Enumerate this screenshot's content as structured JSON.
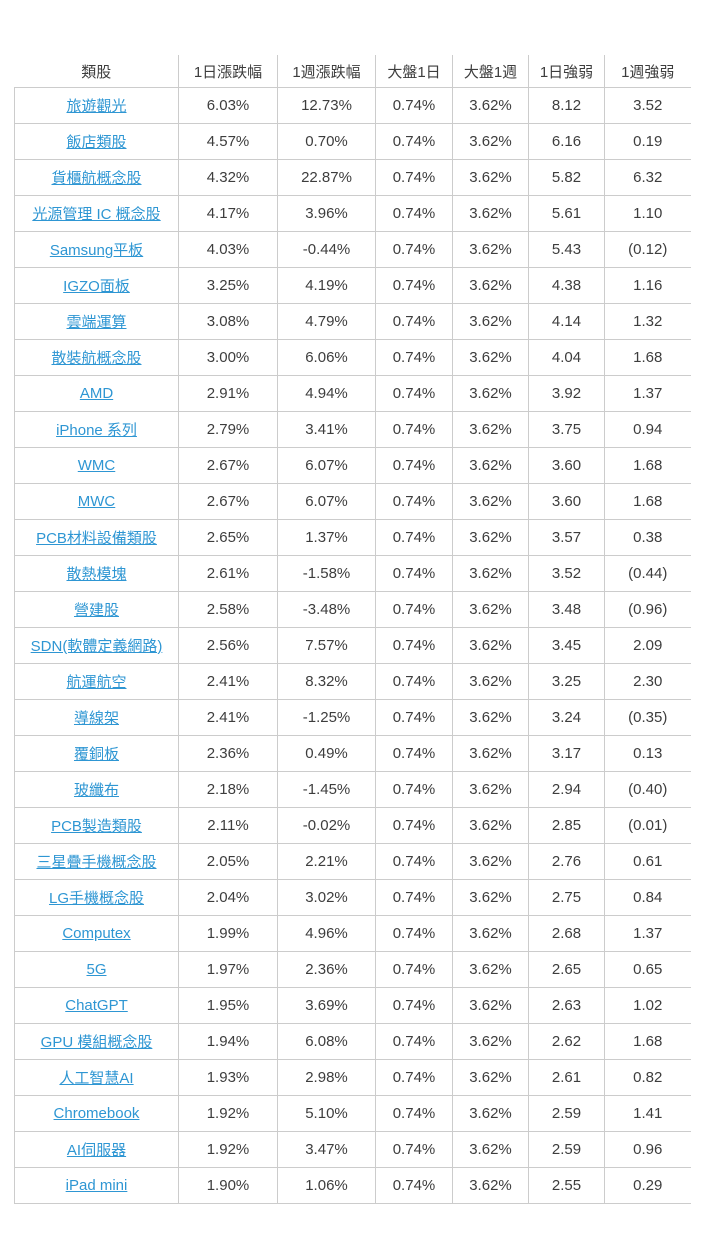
{
  "colors": {
    "link": "#2e96d3",
    "text": "#3d3d3d",
    "border": "#cccccc",
    "background": "#ffffff"
  },
  "table": {
    "headers": [
      "類股",
      "1日漲跌幅",
      "1週漲跌幅",
      "大盤1日",
      "大盤1週",
      "1日強弱",
      "1週強弱"
    ],
    "rows": [
      {
        "category": "旅遊觀光",
        "day_change": "6.03%",
        "week_change": "12.73%",
        "market_day": "0.74%",
        "market_week": "3.62%",
        "day_strength": "8.12",
        "week_strength": "3.52"
      },
      {
        "category": "飯店類股",
        "day_change": "4.57%",
        "week_change": "0.70%",
        "market_day": "0.74%",
        "market_week": "3.62%",
        "day_strength": "6.16",
        "week_strength": "0.19"
      },
      {
        "category": "貨櫃航概念股",
        "day_change": "4.32%",
        "week_change": "22.87%",
        "market_day": "0.74%",
        "market_week": "3.62%",
        "day_strength": "5.82",
        "week_strength": "6.32"
      },
      {
        "category": "光源管理 IC 概念股",
        "day_change": "4.17%",
        "week_change": "3.96%",
        "market_day": "0.74%",
        "market_week": "3.62%",
        "day_strength": "5.61",
        "week_strength": "1.10"
      },
      {
        "category": "Samsung平板",
        "day_change": "4.03%",
        "week_change": "-0.44%",
        "market_day": "0.74%",
        "market_week": "3.62%",
        "day_strength": "5.43",
        "week_strength": "(0.12)"
      },
      {
        "category": "IGZO面板",
        "day_change": "3.25%",
        "week_change": "4.19%",
        "market_day": "0.74%",
        "market_week": "3.62%",
        "day_strength": "4.38",
        "week_strength": "1.16"
      },
      {
        "category": "雲端運算",
        "day_change": "3.08%",
        "week_change": "4.79%",
        "market_day": "0.74%",
        "market_week": "3.62%",
        "day_strength": "4.14",
        "week_strength": "1.32"
      },
      {
        "category": "散裝航概念股",
        "day_change": "3.00%",
        "week_change": "6.06%",
        "market_day": "0.74%",
        "market_week": "3.62%",
        "day_strength": "4.04",
        "week_strength": "1.68"
      },
      {
        "category": "AMD",
        "day_change": "2.91%",
        "week_change": "4.94%",
        "market_day": "0.74%",
        "market_week": "3.62%",
        "day_strength": "3.92",
        "week_strength": "1.37"
      },
      {
        "category": "iPhone 系列",
        "day_change": "2.79%",
        "week_change": "3.41%",
        "market_day": "0.74%",
        "market_week": "3.62%",
        "day_strength": "3.75",
        "week_strength": "0.94"
      },
      {
        "category": "WMC",
        "day_change": "2.67%",
        "week_change": "6.07%",
        "market_day": "0.74%",
        "market_week": "3.62%",
        "day_strength": "3.60",
        "week_strength": "1.68"
      },
      {
        "category": "MWC",
        "day_change": "2.67%",
        "week_change": "6.07%",
        "market_day": "0.74%",
        "market_week": "3.62%",
        "day_strength": "3.60",
        "week_strength": "1.68"
      },
      {
        "category": "PCB材料設備類股",
        "day_change": "2.65%",
        "week_change": "1.37%",
        "market_day": "0.74%",
        "market_week": "3.62%",
        "day_strength": "3.57",
        "week_strength": "0.38"
      },
      {
        "category": "散熱模塊",
        "day_change": "2.61%",
        "week_change": "-1.58%",
        "market_day": "0.74%",
        "market_week": "3.62%",
        "day_strength": "3.52",
        "week_strength": "(0.44)"
      },
      {
        "category": "營建股",
        "day_change": "2.58%",
        "week_change": "-3.48%",
        "market_day": "0.74%",
        "market_week": "3.62%",
        "day_strength": "3.48",
        "week_strength": "(0.96)"
      },
      {
        "category": "SDN(軟體定義網路)",
        "day_change": "2.56%",
        "week_change": "7.57%",
        "market_day": "0.74%",
        "market_week": "3.62%",
        "day_strength": "3.45",
        "week_strength": "2.09"
      },
      {
        "category": "航運航空",
        "day_change": "2.41%",
        "week_change": "8.32%",
        "market_day": "0.74%",
        "market_week": "3.62%",
        "day_strength": "3.25",
        "week_strength": "2.30"
      },
      {
        "category": "導線架",
        "day_change": "2.41%",
        "week_change": "-1.25%",
        "market_day": "0.74%",
        "market_week": "3.62%",
        "day_strength": "3.24",
        "week_strength": "(0.35)"
      },
      {
        "category": "覆銅板",
        "day_change": "2.36%",
        "week_change": "0.49%",
        "market_day": "0.74%",
        "market_week": "3.62%",
        "day_strength": "3.17",
        "week_strength": "0.13"
      },
      {
        "category": "玻纖布",
        "day_change": "2.18%",
        "week_change": "-1.45%",
        "market_day": "0.74%",
        "market_week": "3.62%",
        "day_strength": "2.94",
        "week_strength": "(0.40)"
      },
      {
        "category": "PCB製造類股",
        "day_change": "2.11%",
        "week_change": "-0.02%",
        "market_day": "0.74%",
        "market_week": "3.62%",
        "day_strength": "2.85",
        "week_strength": "(0.01)"
      },
      {
        "category": "三星疊手機概念股",
        "day_change": "2.05%",
        "week_change": "2.21%",
        "market_day": "0.74%",
        "market_week": "3.62%",
        "day_strength": "2.76",
        "week_strength": "0.61"
      },
      {
        "category": "LG手機概念股",
        "day_change": "2.04%",
        "week_change": "3.02%",
        "market_day": "0.74%",
        "market_week": "3.62%",
        "day_strength": "2.75",
        "week_strength": "0.84"
      },
      {
        "category": "Computex",
        "day_change": "1.99%",
        "week_change": "4.96%",
        "market_day": "0.74%",
        "market_week": "3.62%",
        "day_strength": "2.68",
        "week_strength": "1.37"
      },
      {
        "category": "5G",
        "day_change": "1.97%",
        "week_change": "2.36%",
        "market_day": "0.74%",
        "market_week": "3.62%",
        "day_strength": "2.65",
        "week_strength": "0.65"
      },
      {
        "category": "ChatGPT",
        "day_change": "1.95%",
        "week_change": "3.69%",
        "market_day": "0.74%",
        "market_week": "3.62%",
        "day_strength": "2.63",
        "week_strength": "1.02"
      },
      {
        "category": "GPU 模組概念股",
        "day_change": "1.94%",
        "week_change": "6.08%",
        "market_day": "0.74%",
        "market_week": "3.62%",
        "day_strength": "2.62",
        "week_strength": "1.68"
      },
      {
        "category": "人工智慧AI",
        "day_change": "1.93%",
        "week_change": "2.98%",
        "market_day": "0.74%",
        "market_week": "3.62%",
        "day_strength": "2.61",
        "week_strength": "0.82"
      },
      {
        "category": "Chromebook",
        "day_change": "1.92%",
        "week_change": "5.10%",
        "market_day": "0.74%",
        "market_week": "3.62%",
        "day_strength": "2.59",
        "week_strength": "1.41"
      },
      {
        "category": "AI伺服器",
        "day_change": "1.92%",
        "week_change": "3.47%",
        "market_day": "0.74%",
        "market_week": "3.62%",
        "day_strength": "2.59",
        "week_strength": "0.96"
      },
      {
        "category": "iPad mini",
        "day_change": "1.90%",
        "week_change": "1.06%",
        "market_day": "0.74%",
        "market_week": "3.62%",
        "day_strength": "2.55",
        "week_strength": "0.29"
      }
    ]
  }
}
